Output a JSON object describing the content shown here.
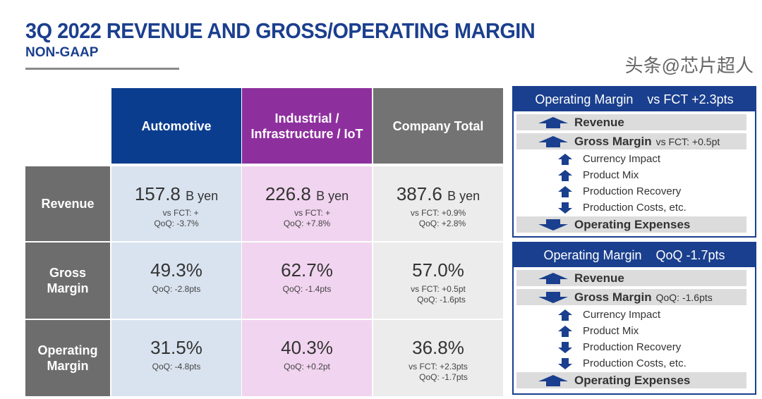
{
  "title": "3Q 2022 REVENUE AND GROSS/OPERATING MARGIN",
  "subtitle": "NON-GAAP",
  "colors": {
    "automotive": "#0b3d8f",
    "industrial": "#8e2f9e",
    "total": "#737373",
    "row_header": "#6d6d6d"
  },
  "table": {
    "columns": [
      "Automotive",
      "Industrial / Infrastructure / IoT",
      "Company Total"
    ],
    "rows": [
      {
        "label": "Revenue",
        "cells": [
          {
            "value": "157.8",
            "unit": "B yen",
            "notes": [
              "vs FCT: +",
              "QoQ: -3.7%"
            ]
          },
          {
            "value": "226.8",
            "unit": "B yen",
            "notes": [
              "vs FCT: +",
              "QoQ: +7.8%"
            ]
          },
          {
            "value": "387.6",
            "unit": "B yen",
            "notes": [
              "vs FCT: +0.9%",
              "QoQ: +2.8%"
            ]
          }
        ]
      },
      {
        "label": "Gross Margin",
        "cells": [
          {
            "value": "49.3%",
            "unit": "",
            "notes": [
              "QoQ: -2.8pts"
            ]
          },
          {
            "value": "62.7%",
            "unit": "",
            "notes": [
              "QoQ: -1.4pts"
            ]
          },
          {
            "value": "57.0%",
            "unit": "",
            "notes": [
              "vs FCT: +0.5pt",
              "QoQ: -1.6pts"
            ]
          }
        ]
      },
      {
        "label": "Operating Margin",
        "cells": [
          {
            "value": "31.5%",
            "unit": "",
            "notes": [
              "QoQ: -4.8pts"
            ]
          },
          {
            "value": "40.3%",
            "unit": "",
            "notes": [
              "QoQ: +0.2pt"
            ]
          },
          {
            "value": "36.8%",
            "unit": "",
            "notes": [
              "vs FCT: +2.3pts",
              "QoQ: -1.7pts"
            ]
          }
        ]
      }
    ]
  },
  "panels": [
    {
      "title": "Operating Margin",
      "delta": "vs FCT +2.3pts",
      "revenue": {
        "label": "Revenue",
        "dir": "up"
      },
      "gross": {
        "label": "Gross Margin",
        "extra": "vs FCT: +0.5pt",
        "dir": "up"
      },
      "factors": [
        {
          "label": "Currency Impact",
          "dir": "up"
        },
        {
          "label": "Product Mix",
          "dir": "up"
        },
        {
          "label": "Production Recovery",
          "dir": "up"
        },
        {
          "label": "Production Costs, etc.",
          "dir": "down"
        }
      ],
      "opex": {
        "label": "Operating Expenses",
        "dir": "down"
      }
    },
    {
      "title": "Operating Margin",
      "delta": "QoQ -1.7pts",
      "revenue": {
        "label": "Revenue",
        "dir": "up"
      },
      "gross": {
        "label": "Gross Margin",
        "extra": "QoQ: -1.6pts",
        "dir": "down"
      },
      "factors": [
        {
          "label": "Currency Impact",
          "dir": "up"
        },
        {
          "label": "Product Mix",
          "dir": "up"
        },
        {
          "label": "Production Recovery",
          "dir": "down"
        },
        {
          "label": "Production Costs, etc.",
          "dir": "down"
        }
      ],
      "opex": {
        "label": "Operating Expenses",
        "dir": "up"
      }
    }
  ],
  "watermark": "头条@芯片超人"
}
